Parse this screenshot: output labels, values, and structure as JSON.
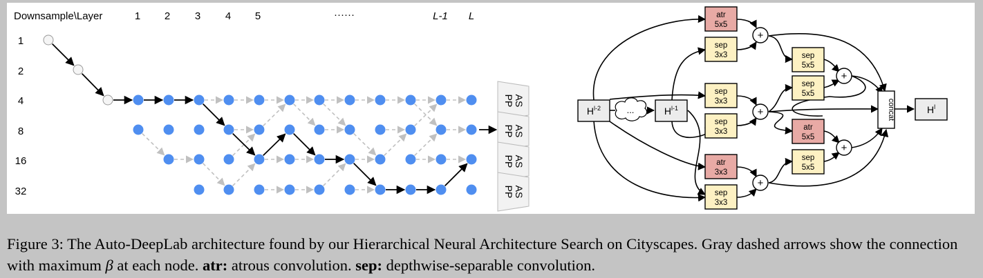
{
  "left": {
    "corner_label": "Downsample\\Layer",
    "layer_labels": [
      "1",
      "2",
      "3",
      "4",
      "5",
      "······",
      "L-1",
      "L"
    ],
    "downsample_labels": [
      "1",
      "2",
      "4",
      "8",
      "16",
      "32"
    ],
    "aspp_label": [
      "AS",
      "PP"
    ]
  },
  "right": {
    "input_prev2": {
      "base": "H",
      "sup": "l-2"
    },
    "ellipsis": "...",
    "input_prev1": {
      "base": "H",
      "sup": "l-1"
    },
    "output": {
      "base": "H",
      "sup": "l"
    },
    "concat_label": "concat",
    "plus_symbol": "+",
    "ops": {
      "op1": [
        "atr",
        "5x5"
      ],
      "op2": [
        "sep",
        "3x3"
      ],
      "op3": [
        "sep",
        "5x5"
      ],
      "op4": [
        "sep",
        "5x5"
      ],
      "op5": [
        "sep",
        "3x3"
      ],
      "op6": [
        "sep",
        "3x3"
      ],
      "op7": [
        "atr",
        "5x5"
      ],
      "op8": [
        "sep",
        "5x5"
      ],
      "op9": [
        "atr",
        "3x3"
      ],
      "op10": [
        "sep",
        "3x3"
      ]
    },
    "colors": {
      "atr": "#e8aaa5",
      "sep": "#fdf1c3",
      "node": "#4f8ef0",
      "dashed": "#c0c0c0"
    }
  },
  "caption": {
    "prefix": "Figure 3: The Auto-DeepLab architecture found by our Hierarchical Neural Architecture Search on Cityscapes. Gray dashed arrows show the connection with maximum ",
    "beta": "β",
    "mid": " at each node. ",
    "atr_term": "atr:",
    "atr_def": " atrous convolution. ",
    "sep_term": "sep:",
    "sep_def": " depthwise-separable convolution."
  }
}
